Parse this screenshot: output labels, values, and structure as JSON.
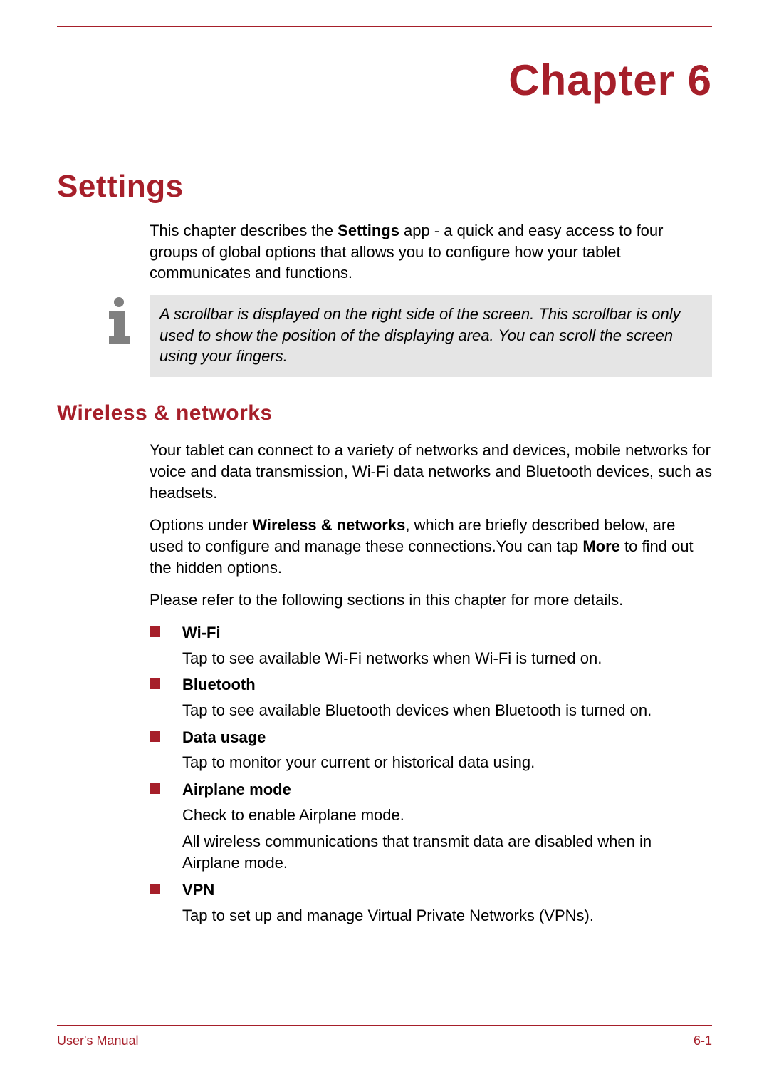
{
  "colors": {
    "accent": "#a61f2a",
    "infoBoxBg": "#e5e5e5",
    "text": "#000000",
    "pageBg": "#ffffff"
  },
  "typography": {
    "chapterTitleSize": 60,
    "sectionTitleSize": 44,
    "subsectionTitleSize": 30,
    "bodySize": 22,
    "footerSize": 18,
    "family": "Arial"
  },
  "chapter": {
    "label": "Chapter 6",
    "title": "Settings",
    "intro_pre": "This chapter describes the ",
    "intro_bold": "Settings",
    "intro_post": " app - a quick and easy access to four groups of global options that allows you to configure how your tablet communicates and functions."
  },
  "infoBox": {
    "text": "A scrollbar is displayed on the right side of the screen. This scrollbar is only used to show the position of the displaying area. You can scroll the screen using your fingers."
  },
  "wireless": {
    "heading": "Wireless & networks",
    "para1": "Your tablet can connect to a variety of networks and devices, mobile networks for voice and data transmission, Wi-Fi data networks and Bluetooth devices, such as headsets.",
    "para2_pre": "Options under ",
    "para2_bold1": "Wireless & networks",
    "para2_mid": ", which are briefly described below, are used to configure and manage these connections.You can tap ",
    "para2_bold2": "More",
    "para2_post": " to find out the hidden options.",
    "para3": "Please refer to the following sections in this chapter for more details.",
    "items": [
      {
        "label": "Wi-Fi",
        "descs": [
          "Tap to see available Wi-Fi networks when Wi-Fi is turned on."
        ]
      },
      {
        "label": "Bluetooth",
        "descs": [
          "Tap to see available Bluetooth devices when Bluetooth is turned on."
        ]
      },
      {
        "label": "Data usage",
        "descs": [
          "Tap to monitor your current or historical data using."
        ]
      },
      {
        "label": "Airplane mode",
        "descs": [
          "Check to enable Airplane mode.",
          "All wireless communications that transmit data are disabled when in Airplane mode."
        ]
      },
      {
        "label": "VPN",
        "descs": [
          "Tap to set up and manage Virtual Private Networks (VPNs)."
        ]
      }
    ]
  },
  "footer": {
    "left": "User's Manual",
    "right": "6-1"
  }
}
